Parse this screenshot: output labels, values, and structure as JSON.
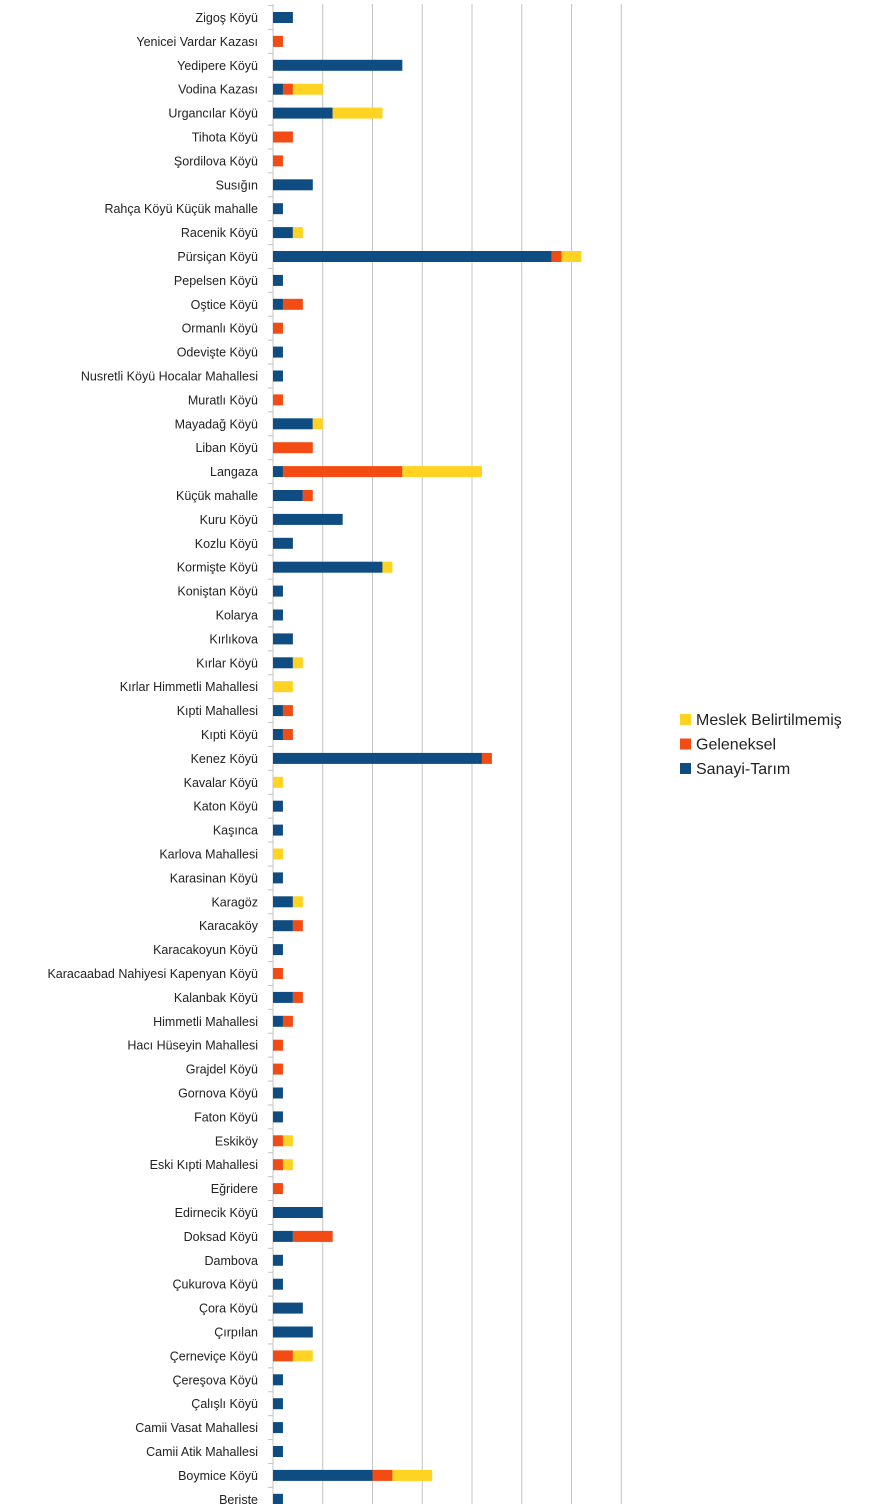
{
  "chart_data": {
    "type": "bar",
    "orientation": "horizontal",
    "stacked": true,
    "grid": true,
    "legend_position": "right",
    "title": "",
    "xlabel": "",
    "ylabel": "",
    "xlim": [
      0,
      35
    ],
    "categories": [
      "Zigoş Köyü",
      "Yenicei Vardar Kazası",
      "Yedipere Köyü",
      "Vodina Kazası",
      "Urgancılar Köyü",
      "Tihota Köyü",
      "Şordilova Köyü",
      "Susığın",
      "Rahça Köyü Küçük mahalle",
      "Racenik Köyü",
      "Pürsiçan Köyü",
      "Pepelsen Köyü",
      "Oştice Köyü",
      "Ormanlı Köyü",
      "Odevişte Köyü",
      "Nusretli Köyü Hocalar Mahallesi",
      "Muratlı Köyü",
      "Mayadağ Köyü",
      "Liban Köyü",
      "Langaza",
      "Küçük mahalle",
      "Kuru Köyü",
      "Kozlu Köyü",
      "Kormişte Köyü",
      "Koniştan Köyü",
      "Kolarya",
      "Kırlıkova",
      "Kırlar Köyü",
      "Kırlar Himmetli Mahallesi",
      "Kıpti Mahallesi",
      "Kıpti Köyü",
      "Kenez Köyü",
      "Kavalar Köyü",
      "Katon Köyü",
      "Kaşınca",
      "Karlova Mahallesi",
      "Karasinan Köyü",
      "Karagöz",
      "Karacaköy",
      "Karacakoyun Köyü",
      "Karacaabad Nahiyesi Kapenyan Köyü",
      "Kalanbak Köyü",
      "Himmetli Mahallesi",
      "Hacı Hüseyin Mahallesi",
      "Grajdel Köyü",
      "Gornova Köyü",
      "Faton Köyü",
      "Eskiköy",
      "Eski Kıpti Mahallesi",
      "Eğridere",
      "Edirnecik Köyü",
      "Doksad Köyü",
      "Dambova",
      "Çukurova Köyü",
      "Çora Köyü",
      "Çırpılan",
      "Çerneviçe Köyü",
      "Çereşova Köyü",
      "Çalışlı Köyü",
      "Camii Vasat Mahallesi",
      "Camii Atik Mahallesi",
      "Boymice Köyü",
      "Berişte"
    ],
    "series": [
      {
        "name": "Sanayi-Tarım",
        "color": "#0f4c81",
        "values": [
          2,
          0,
          13,
          1,
          6,
          0,
          0,
          4,
          1,
          2,
          28,
          1,
          1,
          0,
          1,
          1,
          0,
          4,
          0,
          1,
          3,
          7,
          2,
          11,
          1,
          1,
          2,
          2,
          0,
          1,
          1,
          21,
          0,
          1,
          1,
          0,
          1,
          2,
          2,
          1,
          0,
          2,
          1,
          0,
          0,
          1,
          1,
          0,
          0,
          0,
          5,
          2,
          1,
          1,
          3,
          4,
          0,
          1,
          1,
          1,
          1,
          10,
          1
        ]
      },
      {
        "name": "Geleneksel",
        "color": "#f24b13",
        "values": [
          0,
          1,
          0,
          1,
          0,
          2,
          1,
          0,
          0,
          0,
          1,
          0,
          2,
          1,
          0,
          0,
          1,
          0,
          4,
          12,
          1,
          0,
          0,
          0,
          0,
          0,
          0,
          0,
          0,
          1,
          1,
          1,
          0,
          0,
          0,
          0,
          0,
          0,
          1,
          0,
          1,
          1,
          1,
          1,
          1,
          0,
          0,
          1,
          1,
          1,
          0,
          4,
          0,
          0,
          0,
          0,
          2,
          0,
          0,
          0,
          0,
          2,
          0
        ]
      },
      {
        "name": "Meslek Belirtilmemiş",
        "color": "#ffd321",
        "values": [
          0,
          0,
          0,
          3,
          5,
          0,
          0,
          0,
          0,
          1,
          2,
          0,
          0,
          0,
          0,
          0,
          0,
          1,
          0,
          8,
          0,
          0,
          0,
          1,
          0,
          0,
          0,
          1,
          2,
          0,
          0,
          0,
          1,
          0,
          0,
          1,
          0,
          1,
          0,
          0,
          0,
          0,
          0,
          0,
          0,
          0,
          0,
          1,
          1,
          0,
          0,
          0,
          0,
          0,
          0,
          0,
          2,
          0,
          0,
          0,
          0,
          4,
          0
        ]
      }
    ],
    "legend": [
      {
        "label": "Meslek Belirtilmemiş",
        "color": "#ffd321"
      },
      {
        "label": "Geleneksel",
        "color": "#f24b13"
      },
      {
        "label": "Sanayi-Tarım",
        "color": "#0f4c81"
      }
    ]
  }
}
